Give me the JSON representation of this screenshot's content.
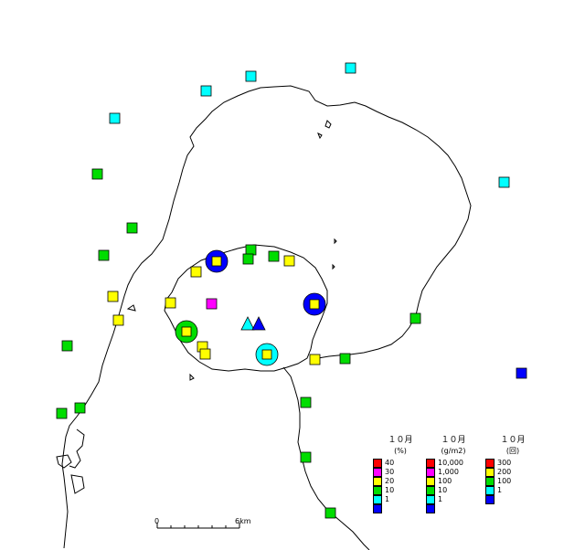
{
  "scale": {
    "start_label": "0",
    "end_label": "6km"
  },
  "legends": [
    {
      "title": "１０月",
      "unit": "(%)",
      "items": [
        {
          "label": "40",
          "color": "#ff0000"
        },
        {
          "label": "30",
          "color": "#ff00ff"
        },
        {
          "label": "20",
          "color": "#ffff00"
        },
        {
          "label": "10",
          "color": "#00dd00"
        },
        {
          "label": "1",
          "color": "#00ffff"
        },
        {
          "label": "",
          "color": "#0000ff"
        }
      ]
    },
    {
      "title": "１０月",
      "unit": "(g/m2)",
      "items": [
        {
          "label": "10,000",
          "color": "#ff0000"
        },
        {
          "label": "1,000",
          "color": "#ff00ff"
        },
        {
          "label": "100",
          "color": "#ffff00"
        },
        {
          "label": "10",
          "color": "#00dd00"
        },
        {
          "label": "1",
          "color": "#00ffff"
        },
        {
          "label": "",
          "color": "#0000ff"
        }
      ]
    },
    {
      "title": "１０月",
      "unit": "(回)",
      "items": [
        {
          "label": "300",
          "color": "#ff0000"
        },
        {
          "label": "200",
          "color": "#ffff00"
        },
        {
          "label": "100",
          "color": "#00dd00"
        },
        {
          "label": "1",
          "color": "#00ffff"
        },
        {
          "label": "",
          "color": "#0000ff"
        }
      ]
    }
  ],
  "colors": {
    "cyan": "#00ffff",
    "green": "#00dd00",
    "yellow": "#ffff00",
    "blue": "#0000ff",
    "magenta": "#ff00ff",
    "red": "#ff0000"
  }
}
